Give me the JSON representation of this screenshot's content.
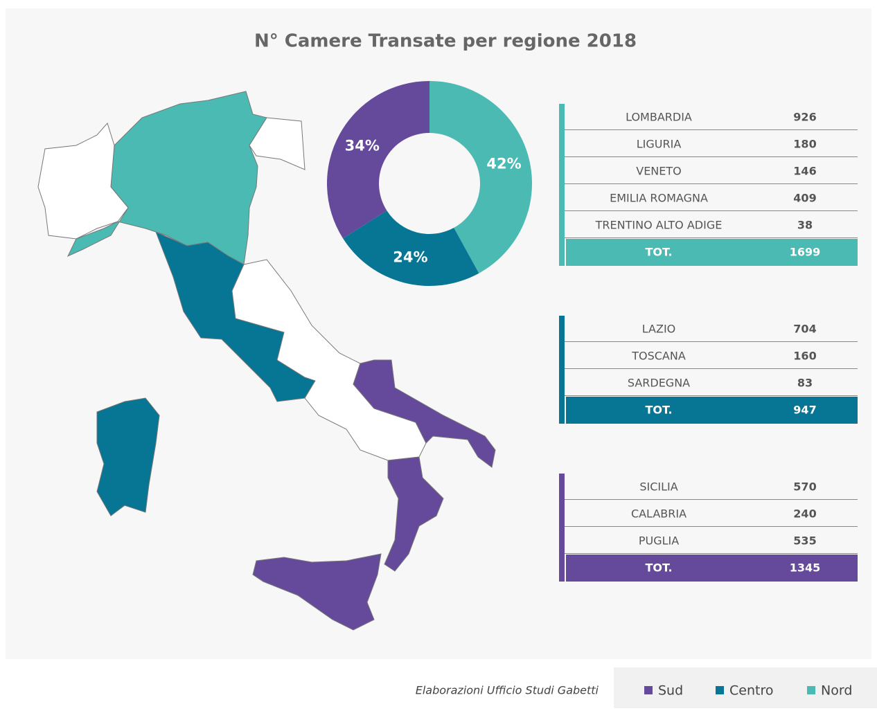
{
  "chart_data": {
    "type": "pie",
    "title": "N° Camere Transate per regione 2018",
    "categories": [
      "Nord",
      "Centro",
      "Sud"
    ],
    "values": [
      42,
      24,
      34
    ],
    "value_labels": [
      "42%",
      "24%",
      "34%"
    ],
    "colors": [
      "#4bbab3",
      "#077594",
      "#654a9b"
    ]
  },
  "tables": [
    {
      "rows": [
        [
          "LOMBARDIA",
          926
        ],
        [
          "LIGURIA",
          180
        ],
        [
          "VENETO",
          146
        ],
        [
          "EMILIA ROMAGNA",
          409
        ],
        [
          "TRENTINO ALTO ADIGE",
          38
        ]
      ],
      "total": [
        "TOT.",
        1699
      ]
    },
    {
      "rows": [
        [
          "LAZIO",
          704
        ],
        [
          "TOSCANA",
          160
        ],
        [
          "SARDEGNA",
          83
        ]
      ],
      "total": [
        "TOT.",
        947
      ]
    },
    {
      "rows": [
        [
          "SICILIA",
          570
        ],
        [
          "CALABRIA",
          240
        ],
        [
          "PUGLIA",
          535
        ]
      ],
      "total": [
        "TOT.",
        1345
      ]
    }
  ],
  "source": "Elaborazioni Ufficio Studi Gabetti"
}
